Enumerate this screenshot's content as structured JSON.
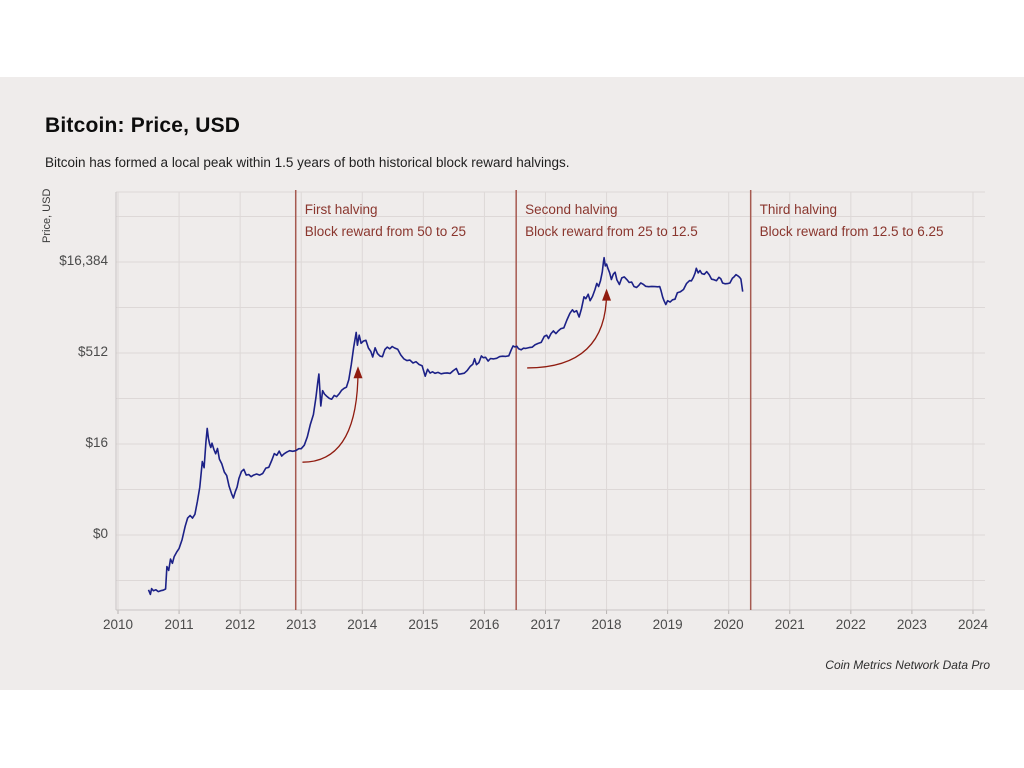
{
  "page": {
    "background": "#ffffff",
    "panel_background": "#efeceb"
  },
  "header": {
    "title": "Bitcoin: Price, USD",
    "subtitle": "Bitcoin has formed a local peak within 1.5 years of both historical block reward halvings."
  },
  "footer": {
    "source": "Coin Metrics Network Data Pro"
  },
  "chart_data": {
    "type": "line",
    "title": "Bitcoin: Price, USD",
    "ylabel": "Price, USD",
    "xlabel": "",
    "y_scale": "log2",
    "grid": true,
    "legend": "none",
    "x_range": [
      2010,
      2024.2
    ],
    "x_ticks": [
      "2010",
      "2011",
      "2012",
      "2013",
      "2014",
      "2015",
      "2016",
      "2017",
      "2018",
      "2019",
      "2020",
      "2021",
      "2022",
      "2023",
      "2024"
    ],
    "y_ticks": [
      {
        "label": "$16,384",
        "axis_value": 16384
      },
      {
        "label": "$512",
        "axis_value": 512
      },
      {
        "label": "$16",
        "axis_value": 16
      },
      {
        "label": "$0",
        "axis_value": 0.5
      }
    ],
    "colors": {
      "line": "#1c2187",
      "halving_line": "#a65a50",
      "annotation_text": "#8a362e",
      "arrow": "#901c10",
      "gridline": "#ddd8d7",
      "axis_line": "#c9c5c4"
    },
    "halvings": [
      {
        "label": "First halving",
        "detail": "Block reward from 50 to 25",
        "year": 2012.91
      },
      {
        "label": "Second halving",
        "detail": "Block reward from 25 to 12.5",
        "year": 2016.52
      },
      {
        "label": "Third halving",
        "detail": "Block reward from 12.5 to 6.25",
        "year": 2020.36
      }
    ],
    "arrows": [
      {
        "from_year": 2013.02,
        "from_price": 8,
        "to_year": 2013.93,
        "to_price": 265
      },
      {
        "from_year": 2016.7,
        "from_price": 290,
        "to_year": 2018.0,
        "to_price": 5100
      }
    ],
    "series": [
      {
        "name": "Bitcoin price, USD",
        "points": [
          [
            2010.5,
            0.062
          ],
          [
            2010.53,
            0.052
          ],
          [
            2010.55,
            0.065
          ],
          [
            2010.58,
            0.06
          ],
          [
            2010.62,
            0.062
          ],
          [
            2010.66,
            0.058
          ],
          [
            2010.7,
            0.06
          ],
          [
            2010.74,
            0.061
          ],
          [
            2010.78,
            0.064
          ],
          [
            2010.8,
            0.15
          ],
          [
            2010.83,
            0.13
          ],
          [
            2010.86,
            0.2
          ],
          [
            2010.89,
            0.17
          ],
          [
            2010.92,
            0.22
          ],
          [
            2010.96,
            0.26
          ],
          [
            2011.0,
            0.3
          ],
          [
            2011.05,
            0.42
          ],
          [
            2011.1,
            0.7
          ],
          [
            2011.14,
            0.95
          ],
          [
            2011.18,
            1.05
          ],
          [
            2011.22,
            0.95
          ],
          [
            2011.26,
            1.1
          ],
          [
            2011.3,
            1.8
          ],
          [
            2011.34,
            3.1
          ],
          [
            2011.38,
            8.2
          ],
          [
            2011.41,
            6.5
          ],
          [
            2011.44,
            17
          ],
          [
            2011.46,
            29
          ],
          [
            2011.48,
            20
          ],
          [
            2011.5,
            16
          ],
          [
            2011.52,
            14
          ],
          [
            2011.54,
            16.5
          ],
          [
            2011.57,
            13
          ],
          [
            2011.6,
            11
          ],
          [
            2011.63,
            13.5
          ],
          [
            2011.66,
            9
          ],
          [
            2011.7,
            7.5
          ],
          [
            2011.74,
            5.5
          ],
          [
            2011.78,
            4.8
          ],
          [
            2011.82,
            3.2
          ],
          [
            2011.86,
            2.4
          ],
          [
            2011.89,
            2.05
          ],
          [
            2011.92,
            2.6
          ],
          [
            2011.95,
            3.1
          ],
          [
            2011.98,
            4.3
          ],
          [
            2012.02,
            5.6
          ],
          [
            2012.06,
            6.1
          ],
          [
            2012.1,
            4.9
          ],
          [
            2012.14,
            5.0
          ],
          [
            2012.18,
            4.6
          ],
          [
            2012.22,
            4.9
          ],
          [
            2012.27,
            5.1
          ],
          [
            2012.32,
            4.9
          ],
          [
            2012.37,
            5.2
          ],
          [
            2012.42,
            6.4
          ],
          [
            2012.47,
            6.6
          ],
          [
            2012.52,
            8.7
          ],
          [
            2012.56,
            11.1
          ],
          [
            2012.6,
            10.4
          ],
          [
            2012.64,
            12.2
          ],
          [
            2012.68,
            10.1
          ],
          [
            2012.72,
            11.0
          ],
          [
            2012.76,
            11.7
          ],
          [
            2012.81,
            12.4
          ],
          [
            2012.86,
            12.1
          ],
          [
            2012.91,
            12.4
          ],
          [
            2012.96,
            13.4
          ],
          [
            2013.0,
            13.4
          ],
          [
            2013.05,
            15.3
          ],
          [
            2013.1,
            21
          ],
          [
            2013.15,
            34
          ],
          [
            2013.2,
            49
          ],
          [
            2013.24,
            93
          ],
          [
            2013.27,
            165
          ],
          [
            2013.29,
            230
          ],
          [
            2013.32,
            68
          ],
          [
            2013.35,
            122
          ],
          [
            2013.38,
            108
          ],
          [
            2013.42,
            98
          ],
          [
            2013.46,
            91
          ],
          [
            2013.5,
            88
          ],
          [
            2013.54,
            102
          ],
          [
            2013.58,
            97
          ],
          [
            2013.62,
            108
          ],
          [
            2013.66,
            123
          ],
          [
            2013.7,
            133
          ],
          [
            2013.74,
            139
          ],
          [
            2013.78,
            185
          ],
          [
            2013.82,
            330
          ],
          [
            2013.86,
            640
          ],
          [
            2013.9,
            1120
          ],
          [
            2013.92,
            690
          ],
          [
            2013.95,
            1010
          ],
          [
            2013.98,
            740
          ],
          [
            2014.02,
            810
          ],
          [
            2014.06,
            830
          ],
          [
            2014.1,
            620
          ],
          [
            2014.14,
            545
          ],
          [
            2014.17,
            440
          ],
          [
            2014.21,
            625
          ],
          [
            2014.25,
            500
          ],
          [
            2014.29,
            455
          ],
          [
            2014.33,
            445
          ],
          [
            2014.37,
            585
          ],
          [
            2014.41,
            640
          ],
          [
            2014.45,
            600
          ],
          [
            2014.49,
            655
          ],
          [
            2014.53,
            620
          ],
          [
            2014.58,
            590
          ],
          [
            2014.63,
            475
          ],
          [
            2014.68,
            410
          ],
          [
            2014.73,
            383
          ],
          [
            2014.78,
            391
          ],
          [
            2014.83,
            350
          ],
          [
            2014.88,
            368
          ],
          [
            2014.93,
            330
          ],
          [
            2014.98,
            316
          ],
          [
            2015.03,
            212
          ],
          [
            2015.07,
            275
          ],
          [
            2015.11,
            238
          ],
          [
            2015.15,
            250
          ],
          [
            2015.19,
            236
          ],
          [
            2015.24,
            245
          ],
          [
            2015.29,
            232
          ],
          [
            2015.34,
            237
          ],
          [
            2015.39,
            240
          ],
          [
            2015.44,
            235
          ],
          [
            2015.49,
            262
          ],
          [
            2015.54,
            284
          ],
          [
            2015.58,
            228
          ],
          [
            2015.62,
            232
          ],
          [
            2015.67,
            237
          ],
          [
            2015.72,
            264
          ],
          [
            2015.77,
            310
          ],
          [
            2015.81,
            334
          ],
          [
            2015.84,
            412
          ],
          [
            2015.87,
            328
          ],
          [
            2015.91,
            355
          ],
          [
            2015.95,
            458
          ],
          [
            2015.98,
            428
          ],
          [
            2016.02,
            434
          ],
          [
            2016.06,
            376
          ],
          [
            2016.1,
            416
          ],
          [
            2016.15,
            409
          ],
          [
            2016.2,
            418
          ],
          [
            2016.25,
            447
          ],
          [
            2016.3,
            454
          ],
          [
            2016.35,
            449
          ],
          [
            2016.4,
            461
          ],
          [
            2016.44,
            580
          ],
          [
            2016.47,
            672
          ],
          [
            2016.5,
            645
          ],
          [
            2016.53,
            663
          ],
          [
            2016.56,
            600
          ],
          [
            2016.6,
            578
          ],
          [
            2016.64,
            615
          ],
          [
            2016.68,
            610
          ],
          [
            2016.73,
            628
          ],
          [
            2016.78,
            638
          ],
          [
            2016.83,
            702
          ],
          [
            2016.88,
            739
          ],
          [
            2016.93,
            768
          ],
          [
            2016.98,
            962
          ],
          [
            2017.02,
            1010
          ],
          [
            2017.05,
            890
          ],
          [
            2017.09,
            1070
          ],
          [
            2017.13,
            1190
          ],
          [
            2017.17,
            1070
          ],
          [
            2017.21,
            1190
          ],
          [
            2017.25,
            1290
          ],
          [
            2017.3,
            1330
          ],
          [
            2017.35,
            1800
          ],
          [
            2017.4,
            2320
          ],
          [
            2017.44,
            2650
          ],
          [
            2017.47,
            2430
          ],
          [
            2017.51,
            2560
          ],
          [
            2017.55,
            2020
          ],
          [
            2017.59,
            2780
          ],
          [
            2017.63,
            4350
          ],
          [
            2017.66,
            4050
          ],
          [
            2017.7,
            4810
          ],
          [
            2017.73,
            3750
          ],
          [
            2017.77,
            4420
          ],
          [
            2017.81,
            5740
          ],
          [
            2017.84,
            7250
          ],
          [
            2017.87,
            6450
          ],
          [
            2017.9,
            8050
          ],
          [
            2017.93,
            11300
          ],
          [
            2017.95,
            16700
          ],
          [
            2017.96,
            19300
          ],
          [
            2017.98,
            14100
          ],
          [
            2018.0,
            15100
          ],
          [
            2018.02,
            13000
          ],
          [
            2018.05,
            10900
          ],
          [
            2018.08,
            8400
          ],
          [
            2018.11,
            10300
          ],
          [
            2018.14,
            11100
          ],
          [
            2018.17,
            8300
          ],
          [
            2018.21,
            6950
          ],
          [
            2018.25,
            8950
          ],
          [
            2018.29,
            9300
          ],
          [
            2018.33,
            8450
          ],
          [
            2018.37,
            7500
          ],
          [
            2018.41,
            7650
          ],
          [
            2018.45,
            6450
          ],
          [
            2018.49,
            6200
          ],
          [
            2018.53,
            6750
          ],
          [
            2018.56,
            7400
          ],
          [
            2018.6,
            7000
          ],
          [
            2018.64,
            6500
          ],
          [
            2018.69,
            6400
          ],
          [
            2018.74,
            6480
          ],
          [
            2018.79,
            6430
          ],
          [
            2018.84,
            6380
          ],
          [
            2018.87,
            6450
          ],
          [
            2018.89,
            5600
          ],
          [
            2018.92,
            4280
          ],
          [
            2018.94,
            3750
          ],
          [
            2018.97,
            3250
          ],
          [
            2019.0,
            3750
          ],
          [
            2019.04,
            3560
          ],
          [
            2019.08,
            3880
          ],
          [
            2019.12,
            3980
          ],
          [
            2019.16,
            5080
          ],
          [
            2019.21,
            5280
          ],
          [
            2019.26,
            5750
          ],
          [
            2019.31,
            7250
          ],
          [
            2019.36,
            8080
          ],
          [
            2019.39,
            7980
          ],
          [
            2019.42,
            9080
          ],
          [
            2019.45,
            10750
          ],
          [
            2019.47,
            12900
          ],
          [
            2019.5,
            10800
          ],
          [
            2019.53,
            11850
          ],
          [
            2019.56,
            10550
          ],
          [
            2019.6,
            10250
          ],
          [
            2019.64,
            11350
          ],
          [
            2019.68,
            10100
          ],
          [
            2019.72,
            8500
          ],
          [
            2019.76,
            8350
          ],
          [
            2019.8,
            8050
          ],
          [
            2019.84,
            9150
          ],
          [
            2019.87,
            8650
          ],
          [
            2019.9,
            7350
          ],
          [
            2019.94,
            7150
          ],
          [
            2019.98,
            7200
          ],
          [
            2020.02,
            7350
          ],
          [
            2020.06,
            8850
          ],
          [
            2020.09,
            9350
          ],
          [
            2020.12,
            10150
          ],
          [
            2020.15,
            9650
          ],
          [
            2020.18,
            9100
          ],
          [
            2020.2,
            8550
          ],
          [
            2020.23,
            5300
          ]
        ]
      }
    ]
  }
}
